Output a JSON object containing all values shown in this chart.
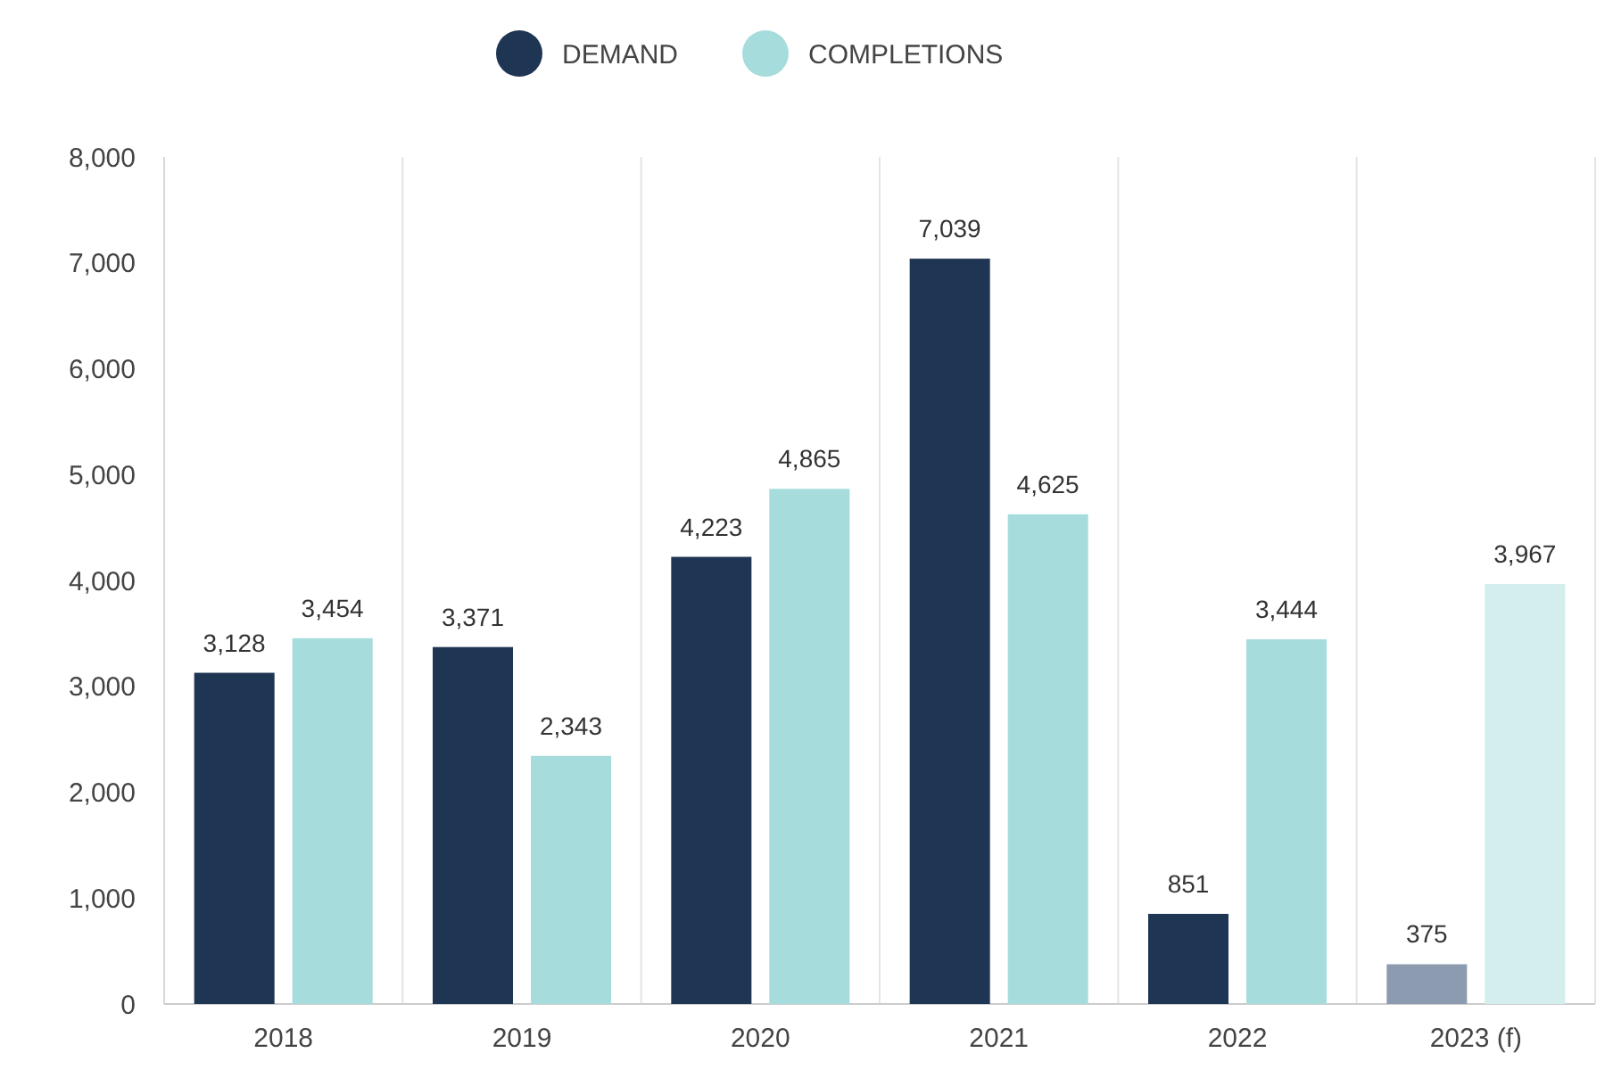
{
  "chart_data": {
    "type": "bar",
    "categories": [
      "2018",
      "2019",
      "2020",
      "2021",
      "2022",
      "2023 (f)"
    ],
    "series": [
      {
        "name": "DEMAND",
        "color": "#1e3553",
        "colors": [
          "#1e3553",
          "#1e3553",
          "#1e3553",
          "#1e3553",
          "#1e3553",
          "#8d9bb0"
        ],
        "values": [
          3128,
          3371,
          4223,
          7039,
          851,
          375
        ],
        "value_labels": [
          "3,128",
          "3,371",
          "4,223",
          "7,039",
          "851",
          "375"
        ]
      },
      {
        "name": "COMPLETIONS",
        "color": "#a6dcdc",
        "colors": [
          "#a6dcdc",
          "#a6dcdc",
          "#a6dcdc",
          "#a6dcdc",
          "#a6dcdc",
          "#d4eded"
        ],
        "values": [
          3454,
          2343,
          4865,
          4625,
          3444,
          3967
        ],
        "value_labels": [
          "3,454",
          "2,343",
          "4,865",
          "4,625",
          "3,444",
          "3,967"
        ]
      }
    ],
    "ylim": [
      0,
      8000
    ],
    "yticks": [
      0,
      {
        "value": 1000,
        "label": "1,000"
      },
      {
        "value": 2000,
        "label": "2,000"
      },
      {
        "value": 3000,
        "label": "3,000"
      },
      {
        "value": 4000,
        "label": "4,000"
      },
      {
        "value": 5000,
        "label": "5,000"
      },
      {
        "value": 6000,
        "label": "6,000"
      },
      {
        "value": 7000,
        "label": "7,000"
      },
      {
        "value": 8000,
        "label": "8,000"
      }
    ],
    "grid": "x",
    "legend": "top"
  }
}
